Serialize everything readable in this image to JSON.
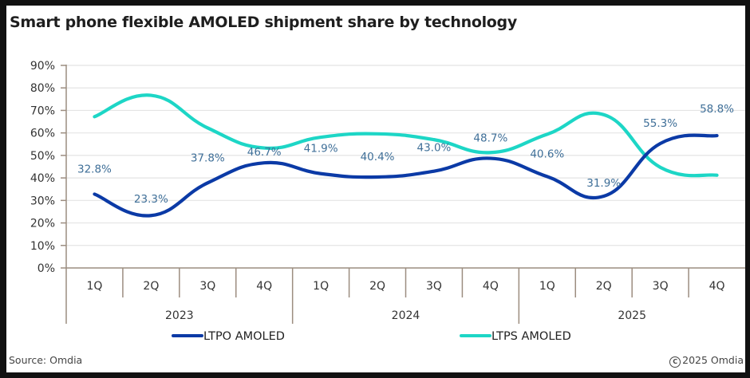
{
  "footer": {
    "source": "Source: Omdia",
    "copyright": "2025 Omdia",
    "copyright_icon": "copyright-icon"
  },
  "chart_data": {
    "type": "line",
    "title": "Smart phone flexible AMOLED shipment share by technology",
    "xlabel": "",
    "ylabel": "",
    "ylim": [
      0,
      90
    ],
    "yticks": [
      "0%",
      "10%",
      "20%",
      "30%",
      "40%",
      "50%",
      "60%",
      "70%",
      "80%",
      "90%"
    ],
    "ytick_values": [
      0,
      10,
      20,
      30,
      40,
      50,
      60,
      70,
      80,
      90
    ],
    "grid": true,
    "categories": [
      "1Q",
      "2Q",
      "3Q",
      "4Q",
      "1Q",
      "2Q",
      "3Q",
      "4Q",
      "1Q",
      "2Q",
      "3Q",
      "4Q"
    ],
    "groups": [
      {
        "label": "2023",
        "count": 4
      },
      {
        "label": "2024",
        "count": 4
      },
      {
        "label": "2025",
        "count": 4
      }
    ],
    "legend_position": "bottom",
    "series": [
      {
        "name": "LTPO AMOLED",
        "color": "#0b3aa6",
        "values": [
          32.8,
          23.3,
          37.8,
          46.7,
          41.9,
          40.4,
          43.0,
          48.7,
          40.6,
          31.9,
          55.3,
          58.8
        ],
        "data_labels": [
          "32.8%",
          "23.3%",
          "37.8%",
          "46.7%",
          "41.9%",
          "40.4%",
          "43.0%",
          "48.7%",
          "40.6%",
          "31.9%",
          "55.3%",
          "58.8%"
        ]
      },
      {
        "name": "LTPS AMOLED",
        "color": "#1dd6c6",
        "values": [
          67.2,
          76.7,
          62.2,
          53.3,
          58.1,
          59.6,
          57.0,
          51.3,
          59.4,
          68.1,
          44.7,
          41.2
        ]
      }
    ],
    "data_label_color": "#3f6f98"
  }
}
